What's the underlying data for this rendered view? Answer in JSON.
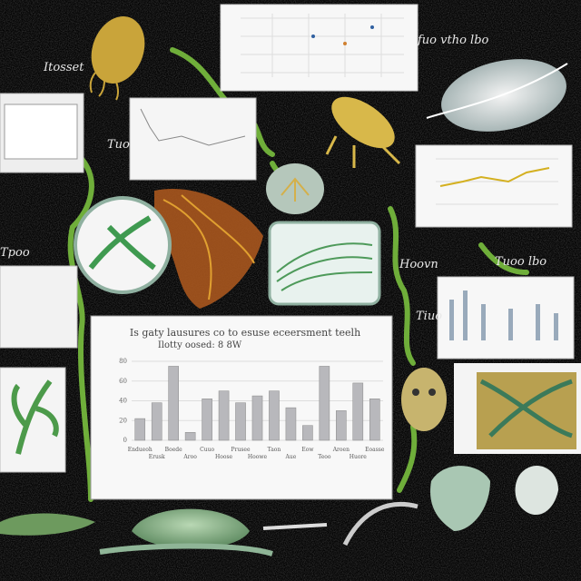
{
  "labels": [
    "Itosset",
    "fuo vtho lbo",
    "Tuo",
    "Tpoo",
    "Hoovn",
    "Tuoo lbo",
    "Tiuo"
  ],
  "main_panel": {
    "title": "Is gaty lausures co to esuse eceersment teelh",
    "subtitle": "Ilotty oosed: 8 8W",
    "categories": [
      "Endueoh",
      "Erusk",
      "Boede",
      "Aroo",
      "Cuuo",
      "Hoose",
      "Prusee",
      "Hoowe",
      "Taon",
      "Aue",
      "Eow",
      "Teoo",
      "Aroen",
      "Huore",
      "Eoasse"
    ],
    "values": [
      22,
      38,
      75,
      8,
      42,
      50,
      38,
      45,
      50,
      33,
      15,
      75,
      30,
      58,
      42
    ],
    "ylim": [
      0,
      80
    ],
    "yticks": [
      0,
      20,
      40,
      60,
      80
    ]
  }
}
